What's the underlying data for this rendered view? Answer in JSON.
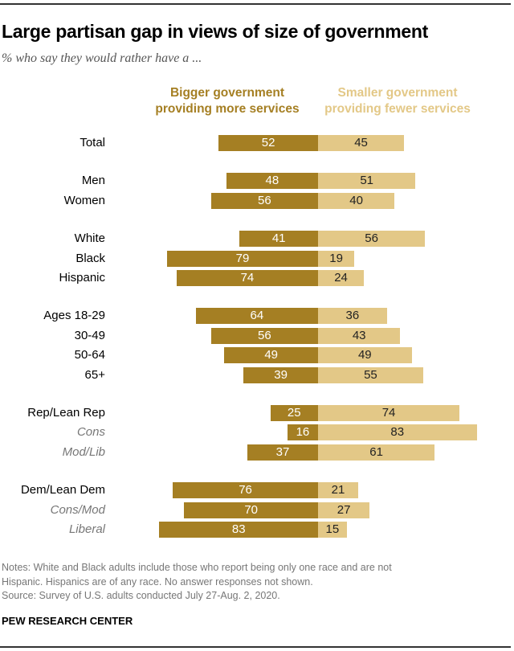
{
  "chart_data": {
    "type": "bar",
    "orientation": "diverging-horizontal",
    "title": "Large partisan gap in views of size of government",
    "subtitle": "% who say they would rather have a ...",
    "series": [
      {
        "name": "Bigger government providing more services",
        "color": "#a57f23"
      },
      {
        "name": "Smaller government providing fewer services",
        "color": "#e3c887"
      }
    ],
    "legend_lines": [
      [
        "Bigger government",
        "providing more services"
      ],
      [
        "Smaller government",
        "providing fewer services"
      ]
    ],
    "rows": [
      {
        "label": "Total",
        "sub": false,
        "group": 0,
        "bigger": 52,
        "smaller": 45
      },
      {
        "label": "Men",
        "sub": false,
        "group": 1,
        "bigger": 48,
        "smaller": 51
      },
      {
        "label": "Women",
        "sub": false,
        "group": 1,
        "bigger": 56,
        "smaller": 40
      },
      {
        "label": "White",
        "sub": false,
        "group": 2,
        "bigger": 41,
        "smaller": 56
      },
      {
        "label": "Black",
        "sub": false,
        "group": 2,
        "bigger": 79,
        "smaller": 19
      },
      {
        "label": "Hispanic",
        "sub": false,
        "group": 2,
        "bigger": 74,
        "smaller": 24
      },
      {
        "label": "Ages 18-29",
        "sub": false,
        "group": 3,
        "bigger": 64,
        "smaller": 36
      },
      {
        "label": "30-49",
        "sub": false,
        "group": 3,
        "bigger": 56,
        "smaller": 43
      },
      {
        "label": "50-64",
        "sub": false,
        "group": 3,
        "bigger": 49,
        "smaller": 49
      },
      {
        "label": "65+",
        "sub": false,
        "group": 3,
        "bigger": 39,
        "smaller": 55
      },
      {
        "label": "Rep/Lean Rep",
        "sub": false,
        "group": 4,
        "bigger": 25,
        "smaller": 74
      },
      {
        "label": "Cons",
        "sub": true,
        "group": 4,
        "bigger": 16,
        "smaller": 83
      },
      {
        "label": "Mod/Lib",
        "sub": true,
        "group": 4,
        "bigger": 37,
        "smaller": 61
      },
      {
        "label": "Dem/Lean Dem",
        "sub": false,
        "group": 5,
        "bigger": 76,
        "smaller": 21
      },
      {
        "label": "Cons/Mod",
        "sub": true,
        "group": 5,
        "bigger": 70,
        "smaller": 27
      },
      {
        "label": "Liberal",
        "sub": true,
        "group": 5,
        "bigger": 83,
        "smaller": 15
      }
    ],
    "xlim": [
      0,
      100
    ]
  },
  "notes": [
    "Notes: White and Black adults include those who report being only one race and are not",
    "Hispanic. Hispanics are of any race. No answer responses not shown.",
    "Source: Survey of U.S. adults conducted July 27-Aug. 2, 2020."
  ],
  "brand": "PEW RESEARCH CENTER"
}
